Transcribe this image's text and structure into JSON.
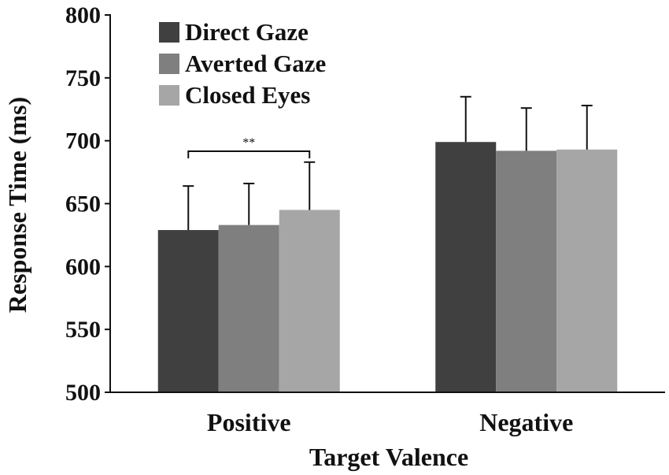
{
  "chart_data": {
    "type": "bar",
    "title": "",
    "xlabel": "Target Valence",
    "ylabel": "Response Time (ms)",
    "ylim": [
      500,
      800
    ],
    "yticks": [
      500,
      550,
      600,
      650,
      700,
      750,
      800
    ],
    "categories": [
      "Positive",
      "Negative"
    ],
    "series": [
      {
        "name": "Direct Gaze",
        "color": "#404040",
        "values": [
          629,
          699
        ],
        "errors": [
          35,
          36
        ]
      },
      {
        "name": "Averted Gaze",
        "color": "#7f7f7f",
        "values": [
          633,
          692
        ],
        "errors": [
          33,
          34
        ]
      },
      {
        "name": "Closed Eyes",
        "color": "#a6a6a6",
        "values": [
          645,
          693
        ],
        "errors": [
          38,
          35
        ]
      }
    ],
    "legend": {
      "position": "top-left"
    },
    "annotations": [
      {
        "label": "**",
        "category": "Positive",
        "from_series": 0,
        "to_series": 2
      }
    ]
  }
}
